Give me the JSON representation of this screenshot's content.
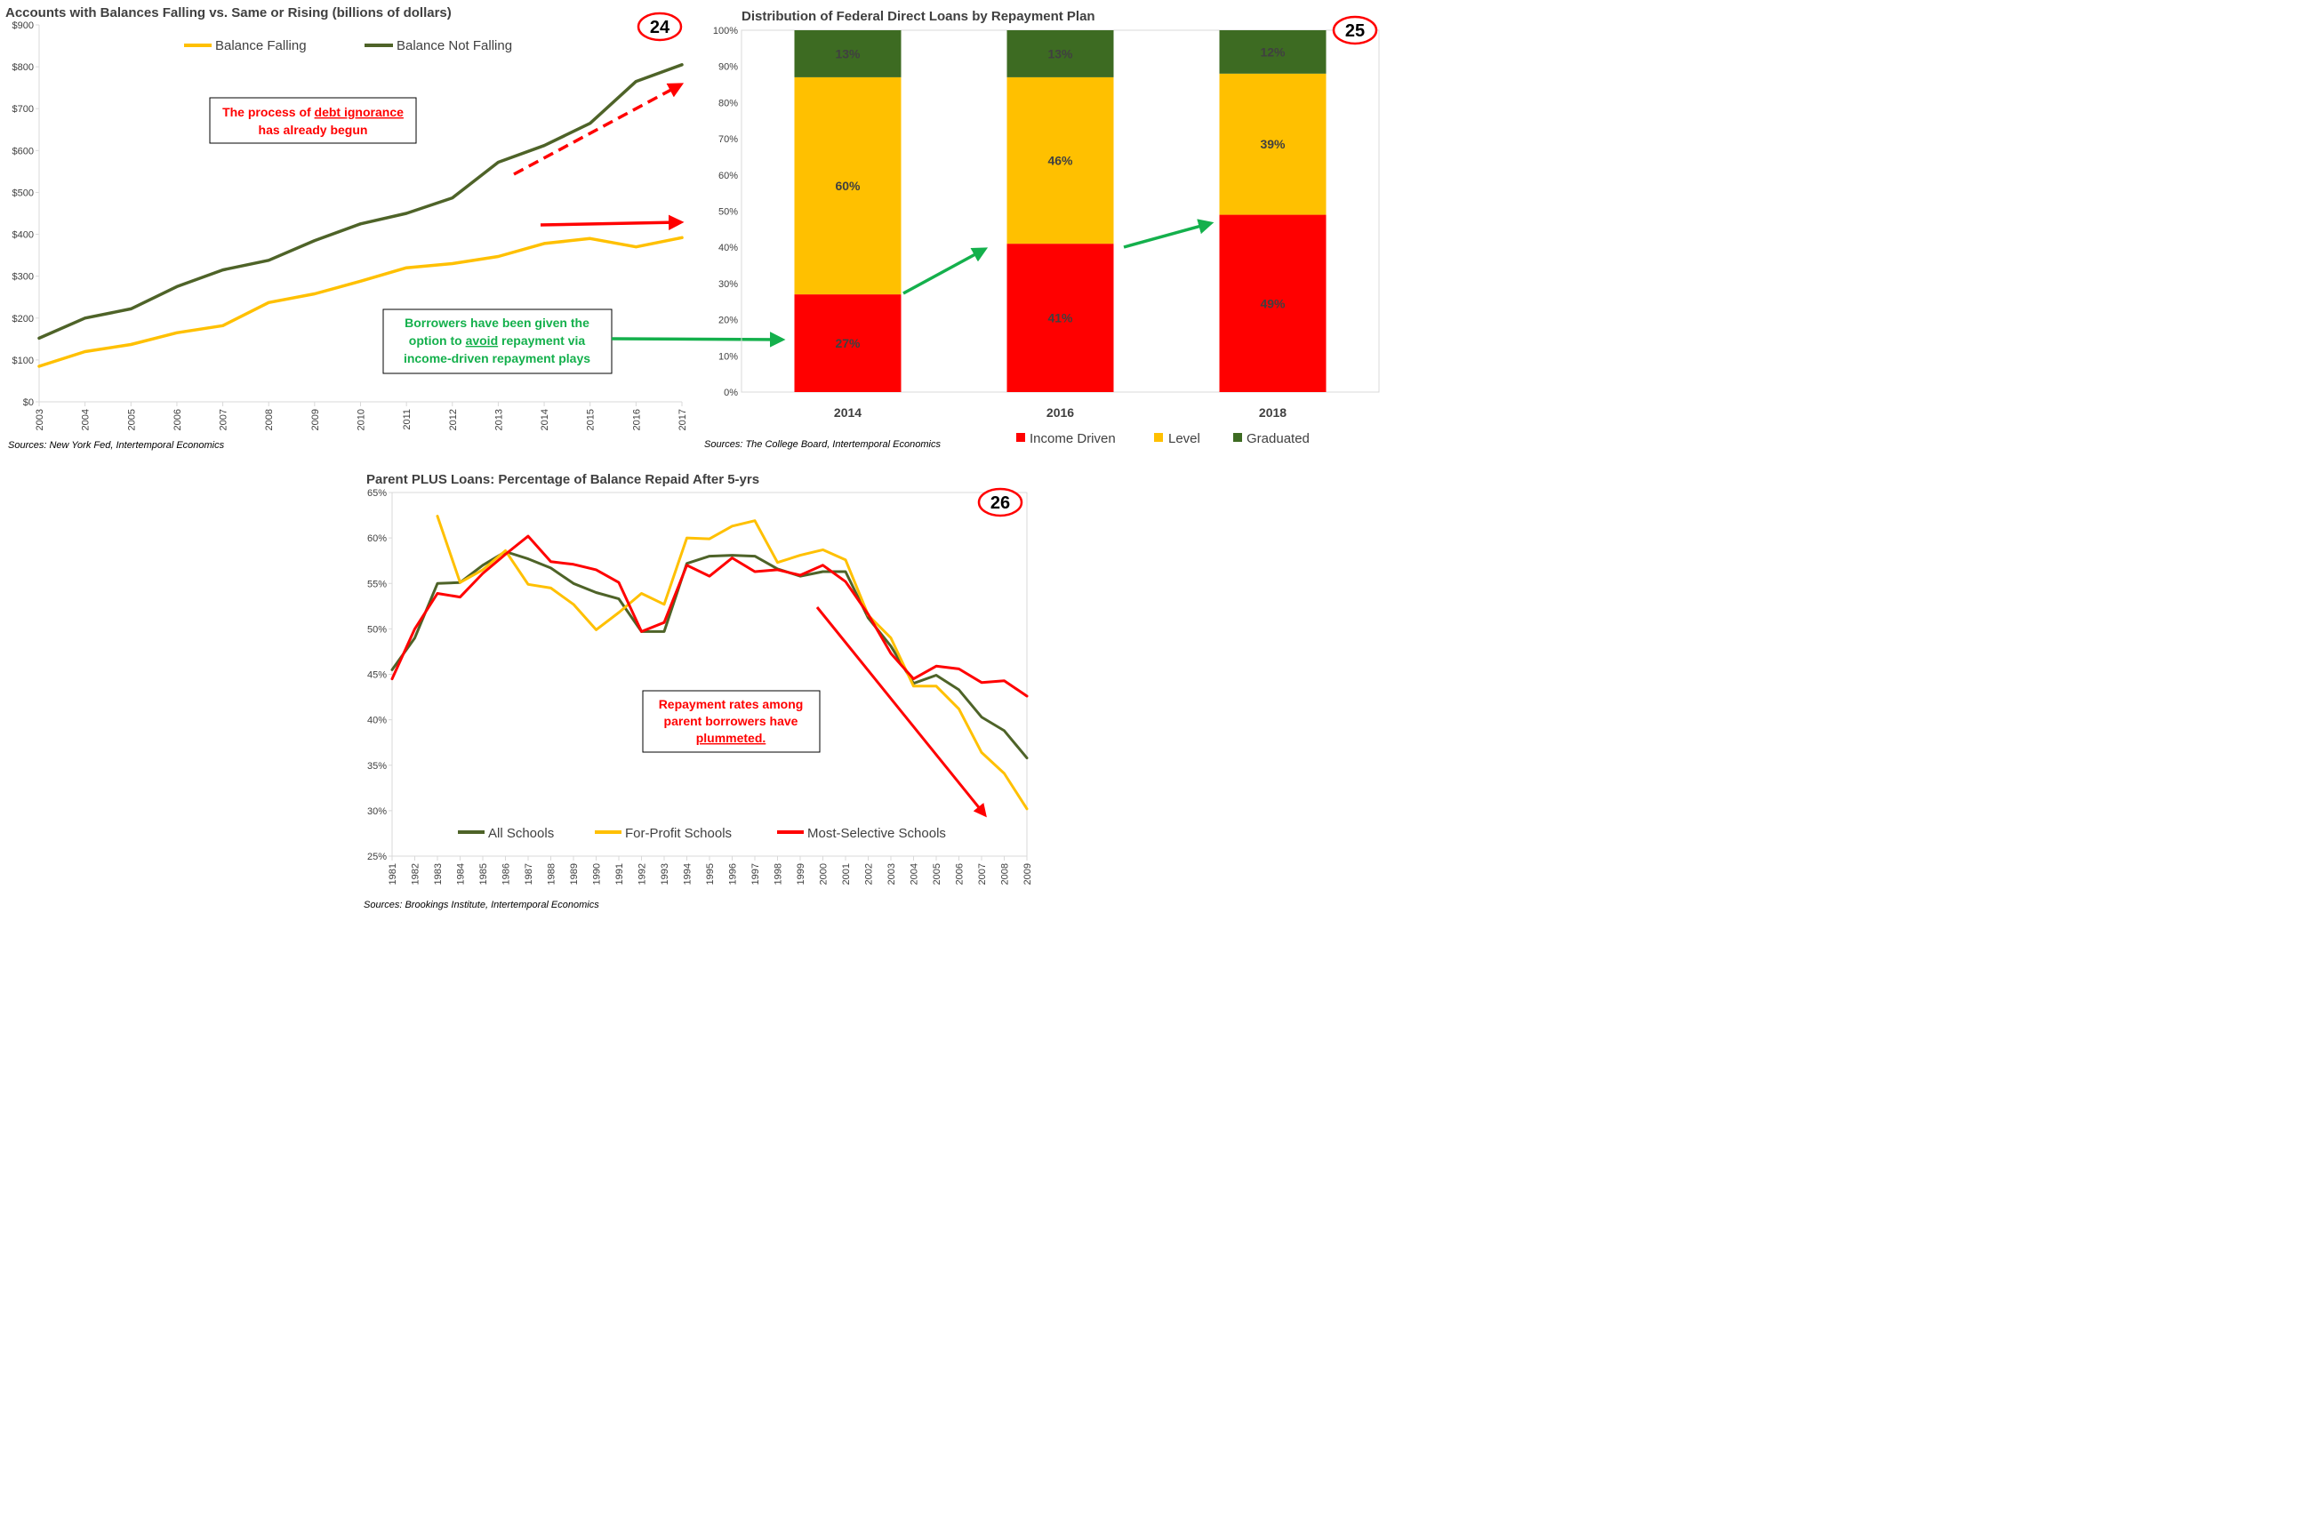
{
  "colors": {
    "dark_green": "#4E6328",
    "gold": "#FFC000",
    "red": "#FF0000",
    "arrow_green": "#14B04C",
    "axis": "#D9D9D9",
    "text": "#404040"
  },
  "chart_data": [
    {
      "type": "line",
      "title": "Accounts with Balances Falling vs. Same or Rising (billions of dollars)",
      "badge": "24",
      "x": [
        "2003",
        "2004",
        "2005",
        "2006",
        "2007",
        "2008",
        "2009",
        "2010",
        "2011",
        "2012",
        "2013",
        "2014",
        "2015",
        "2016",
        "2017"
      ],
      "ylim": [
        0,
        900
      ],
      "y_ticks": [
        0,
        100,
        200,
        300,
        400,
        500,
        600,
        700,
        800,
        900
      ],
      "y_tick_labels": [
        "$0",
        "$100",
        "$200",
        "$300",
        "$400",
        "$500",
        "$600",
        "$700",
        "$800",
        "$900"
      ],
      "grid": false,
      "legend": "top",
      "series": [
        {
          "name": "Balance Falling",
          "color": "#FFC000",
          "values": [
            85,
            120,
            137,
            165,
            182,
            237,
            258,
            288,
            320,
            330,
            347,
            378,
            390,
            370,
            392
          ]
        },
        {
          "name": "Balance Not Falling",
          "color": "#4E6328",
          "values": [
            152,
            200,
            222,
            275,
            315,
            338,
            385,
            425,
            450,
            487,
            572,
            612,
            665,
            765,
            805
          ]
        }
      ],
      "annotations": {
        "debt_note_line1_pre": "The process of ",
        "debt_note_line1_link": "debt ignorance",
        "debt_note_line2": "has already begun",
        "borrowers_note_line1": "Borrowers have been given the",
        "borrowers_note_line2_pre": "option to ",
        "borrowers_note_line2_link": "avoid",
        "borrowers_note_line2_post": " repayment via",
        "borrowers_note_line3": "income-driven repayment plays"
      },
      "source": "Sources: New York Fed, Intertemporal Economics"
    },
    {
      "type": "bar",
      "stacked": true,
      "title": "Distribution of Federal Direct Loans by Repayment Plan",
      "badge": "25",
      "categories": [
        "2014",
        "2016",
        "2018"
      ],
      "ylim": [
        0,
        100
      ],
      "y_ticks": [
        0,
        10,
        20,
        30,
        40,
        50,
        60,
        70,
        80,
        90,
        100
      ],
      "y_tick_labels": [
        "0%",
        "10%",
        "20%",
        "30%",
        "40%",
        "50%",
        "60%",
        "70%",
        "80%",
        "90%",
        "100%"
      ],
      "grid": false,
      "legend": "bottom",
      "series": [
        {
          "name": "Income Driven",
          "color": "#FF0000",
          "values": [
            27,
            41,
            49
          ],
          "labels": [
            "27%",
            "41%",
            "49%"
          ]
        },
        {
          "name": "Level",
          "color": "#FFC000",
          "values": [
            60,
            46,
            39
          ],
          "labels": [
            "60%",
            "46%",
            "39%"
          ]
        },
        {
          "name": "Graduated",
          "color": "#3D6B22",
          "values": [
            13,
            13,
            12
          ],
          "labels": [
            "13%",
            "13%",
            "12%"
          ]
        }
      ],
      "source": "Sources: The College Board, Intertemporal Economics"
    },
    {
      "type": "line",
      "title": "Parent PLUS Loans: Percentage of Balance Repaid After 5-yrs",
      "badge": "26",
      "x": [
        "1981",
        "1982",
        "1983",
        "1984",
        "1985",
        "1986",
        "1987",
        "1988",
        "1989",
        "1990",
        "1991",
        "1992",
        "1993",
        "1994",
        "1995",
        "1996",
        "1997",
        "1998",
        "1999",
        "2000",
        "2001",
        "2002",
        "2003",
        "2004",
        "2005",
        "2006",
        "2007",
        "2008",
        "2009"
      ],
      "ylim": [
        25,
        65
      ],
      "y_ticks": [
        25,
        30,
        35,
        40,
        45,
        50,
        55,
        60,
        65
      ],
      "y_tick_labels": [
        "25%",
        "30%",
        "35%",
        "40%",
        "45%",
        "50%",
        "55%",
        "60%",
        "65%"
      ],
      "grid": false,
      "legend": "bottom",
      "series": [
        {
          "name": "All Schools",
          "color": "#4E6328",
          "values": [
            45.5,
            49.0,
            55.0,
            55.1,
            57.0,
            58.5,
            57.7,
            56.7,
            55.0,
            54.0,
            53.3,
            49.7,
            49.7,
            57.2,
            58.0,
            58.1,
            58.0,
            56.6,
            55.8,
            56.3,
            56.3,
            51.2,
            48.1,
            44.0,
            44.9,
            43.3,
            40.3,
            38.8,
            35.8
          ]
        },
        {
          "name": "For-Profit Schools",
          "color": "#FFC000",
          "values": [
            null,
            null,
            62.4,
            55.1,
            56.5,
            58.6,
            54.9,
            54.5,
            52.7,
            49.9,
            51.8,
            53.9,
            52.7,
            60.0,
            59.9,
            61.3,
            61.9,
            57.3,
            58.1,
            58.7,
            57.6,
            51.5,
            49.0,
            43.7,
            43.7,
            41.2,
            36.4,
            34.1,
            30.2
          ]
        },
        {
          "name": "Most-Selective Schools",
          "color": "#FF0000",
          "values": [
            44.5,
            50.0,
            53.9,
            53.5,
            56.1,
            58.2,
            60.2,
            57.4,
            57.1,
            56.5,
            55.1,
            49.7,
            50.7,
            57.0,
            55.8,
            57.8,
            56.3,
            56.5,
            55.9,
            57.0,
            55.2,
            51.6,
            47.3,
            44.5,
            45.9,
            45.6,
            44.1,
            44.3,
            42.6
          ]
        }
      ],
      "annotations": {
        "repay_note_line1": "Repayment rates among",
        "repay_note_line2": "parent borrowers have",
        "repay_note_line3": "plummeted."
      },
      "source": "Sources: Brookings Institute, Intertemporal Economics"
    }
  ]
}
